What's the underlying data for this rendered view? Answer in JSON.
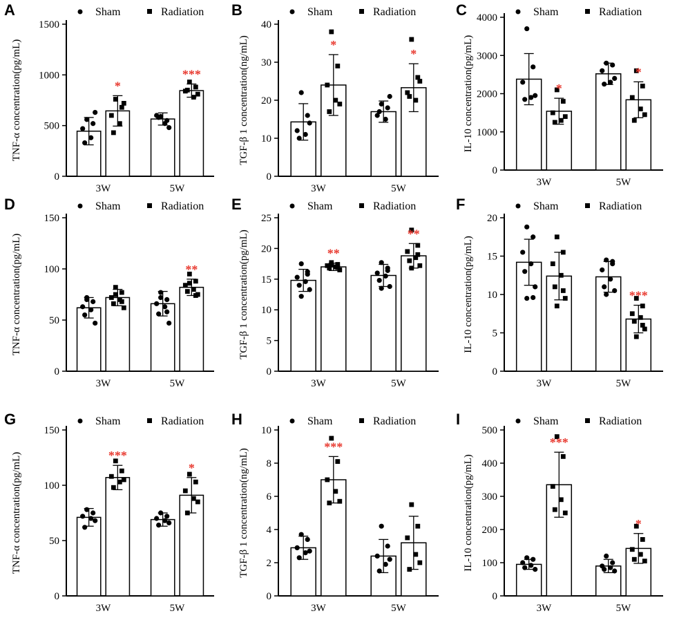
{
  "figure": {
    "legend": {
      "sham_label": "Sham",
      "radiation_label": "Radiation"
    },
    "colors": {
      "axis": "#000000",
      "bar_fill": "#ffffff",
      "point": "#000000",
      "significance": "#e8392f"
    }
  },
  "chart_data": [
    {
      "panel": "A",
      "type": "bar",
      "ylabel": "TNF-α  concentration(pg/mL)",
      "ylim": [
        0,
        1500
      ],
      "yticks": [
        0,
        500,
        1000,
        1500
      ],
      "categories": [
        "3W",
        "5W"
      ],
      "series": [
        {
          "name": "Sham",
          "means": [
            445,
            565
          ],
          "sd": [
            135,
            60
          ],
          "points": [
            [
              560,
              520,
              470,
              380,
              330,
              630
            ],
            [
              590,
              550,
              600,
              520,
              580,
              480
            ]
          ]
        },
        {
          "name": "Radiation",
          "means": [
            645,
            845
          ],
          "sd": [
            150,
            65
          ],
          "points": [
            [
              760,
              680,
              600,
              520,
              430,
              720
            ],
            [
              930,
              880,
              840,
              780,
              850,
              810
            ]
          ]
        }
      ],
      "significance": [
        [
          "",
          ""
        ],
        [
          "*",
          "***"
        ]
      ]
    },
    {
      "panel": "B",
      "type": "bar",
      "ylabel": "TGF-β 1 concentration(ng/mL)",
      "ylim": [
        0,
        40
      ],
      "yticks": [
        0,
        10,
        20,
        30,
        40
      ],
      "categories": [
        "3W",
        "5W"
      ],
      "series": [
        {
          "name": "Sham",
          "means": [
            14.3,
            17.0
          ],
          "sd": [
            4.8,
            2.8
          ],
          "points": [
            [
              22,
              16,
              12,
              11,
              10,
              14
            ],
            [
              19,
              18,
              16,
              15,
              17,
              21
            ]
          ]
        },
        {
          "name": "Radiation",
          "means": [
            24.0,
            23.3
          ],
          "sd": [
            8.0,
            6.3
          ],
          "points": [
            [
              38,
              29,
              24,
              20,
              17,
              19
            ],
            [
              36,
              26,
              22,
              20,
              21,
              25
            ]
          ]
        }
      ],
      "significance": [
        [
          "",
          ""
        ],
        [
          "*",
          "*"
        ]
      ]
    },
    {
      "panel": "C",
      "type": "bar",
      "ylabel": "IL-10  concentration(pg/mL)",
      "ylim": [
        0,
        4000
      ],
      "yticks": [
        0,
        1000,
        2000,
        3000,
        4000
      ],
      "categories": [
        "3W",
        "5W"
      ],
      "series": [
        {
          "name": "Sham",
          "means": [
            2380,
            2520
          ],
          "sd": [
            670,
            280
          ],
          "points": [
            [
              3700,
              2700,
              2300,
              1900,
              1850,
              1950
            ],
            [
              2800,
              2750,
              2600,
              2300,
              2250,
              2400
            ]
          ]
        },
        {
          "name": "Radiation",
          "means": [
            1540,
            1840
          ],
          "sd": [
            340,
            470
          ],
          "points": [
            [
              2100,
              1800,
              1500,
              1300,
              1250,
              1400
            ],
            [
              2600,
              2200,
              1900,
              1600,
              1300,
              1450
            ]
          ]
        }
      ],
      "significance": [
        [
          "",
          ""
        ],
        [
          "*",
          "*"
        ]
      ]
    },
    {
      "panel": "D",
      "type": "bar",
      "ylabel": "TNF-α  concentration(pg/mL)",
      "ylim": [
        0,
        150
      ],
      "yticks": [
        0,
        50,
        100,
        150
      ],
      "categories": [
        "3W",
        "5W"
      ],
      "series": [
        {
          "name": "Sham",
          "means": [
            62,
            66
          ],
          "sd": [
            10,
            12
          ],
          "points": [
            [
              72,
              68,
              63,
              60,
              55,
              47,
              70
            ],
            [
              77,
              70,
              66,
              63,
              56,
              47,
              72,
              58
            ]
          ]
        },
        {
          "name": "Radiation",
          "means": [
            72,
            82
          ],
          "sd": [
            8,
            8
          ],
          "points": [
            [
              82,
              77,
              72,
              70,
              66,
              62,
              75,
              68
            ],
            [
              95,
              88,
              84,
              80,
              78,
              75,
              86,
              74
            ]
          ]
        }
      ],
      "significance": [
        [
          "",
          ""
        ],
        [
          "",
          "**"
        ]
      ]
    },
    {
      "panel": "E",
      "type": "bar",
      "ylabel": "TGF-β 1 concentration(pg/mL)",
      "ylim": [
        0,
        25
      ],
      "yticks": [
        0,
        5,
        10,
        15,
        20,
        25
      ],
      "categories": [
        "3W",
        "5W"
      ],
      "series": [
        {
          "name": "Sham",
          "means": [
            14.8,
            15.6
          ],
          "sd": [
            1.8,
            1.8
          ],
          "points": [
            [
              17.5,
              16.2,
              15.3,
              14.6,
              14.0,
              13.3,
              12.2,
              15.8
            ],
            [
              17.7,
              16.8,
              16.0,
              15.5,
              14.8,
              13.8,
              13.5,
              16.4
            ]
          ]
        },
        {
          "name": "Radiation",
          "means": [
            17.0,
            18.8
          ],
          "sd": [
            0.6,
            2.0
          ],
          "points": [
            [
              17.7,
              17.4,
              17.2,
              17.0,
              16.8,
              16.5,
              17.3,
              16.9
            ],
            [
              23.0,
              20.5,
              19.5,
              18.5,
              18.0,
              17.2,
              16.8,
              19.0
            ]
          ]
        }
      ],
      "significance": [
        [
          "",
          ""
        ],
        [
          "**",
          "**"
        ]
      ]
    },
    {
      "panel": "F",
      "type": "bar",
      "ylabel": "IL-10  concentration(pg/mL)",
      "ylim": [
        0,
        20
      ],
      "yticks": [
        0,
        5,
        10,
        15,
        20
      ],
      "categories": [
        "3W",
        "5W"
      ],
      "series": [
        {
          "name": "Sham",
          "means": [
            14.2,
            12.3
          ],
          "sd": [
            3.0,
            2.0
          ],
          "points": [
            [
              18.8,
              17.5,
              15.5,
              14.0,
              13.0,
              11.0,
              9.5,
              9.6
            ],
            [
              14.5,
              14.0,
              13.2,
              12.0,
              11.0,
              10.5,
              10.0,
              14.3
            ]
          ]
        },
        {
          "name": "Radiation",
          "means": [
            12.4,
            6.8
          ],
          "sd": [
            3.1,
            1.8
          ],
          "points": [
            [
              17.5,
              15.5,
              14.0,
              12.5,
              11.0,
              9.5,
              8.5,
              10.5
            ],
            [
              9.5,
              8.5,
              7.5,
              7.0,
              6.5,
              5.5,
              4.5,
              6.0
            ]
          ]
        }
      ],
      "significance": [
        [
          "",
          ""
        ],
        [
          "",
          "***"
        ]
      ]
    },
    {
      "panel": "G",
      "type": "bar",
      "ylabel": "TNF-α  concentration(pg/mL)",
      "ylim": [
        0,
        150
      ],
      "yticks": [
        0,
        50,
        100,
        150
      ],
      "categories": [
        "3W",
        "5W"
      ],
      "series": [
        {
          "name": "Sham",
          "means": [
            71,
            69
          ],
          "sd": [
            8,
            6
          ],
          "points": [
            [
              78,
              75,
              72,
              70,
              62,
              68
            ],
            [
              75,
              72,
              70,
              68,
              64,
              66
            ]
          ]
        },
        {
          "name": "Radiation",
          "means": [
            107,
            91
          ],
          "sd": [
            11,
            16
          ],
          "points": [
            [
              122,
              113,
              108,
              103,
              98,
              105
            ],
            [
              110,
              103,
              95,
              88,
              75,
              85
            ]
          ]
        }
      ],
      "significance": [
        [
          "",
          ""
        ],
        [
          "***",
          "*"
        ]
      ]
    },
    {
      "panel": "H",
      "type": "bar",
      "ylabel": "TGF-β 1 concentration(ng/mL)",
      "ylim": [
        0,
        10
      ],
      "yticks": [
        0,
        2,
        4,
        6,
        8,
        10
      ],
      "categories": [
        "3W",
        "5W"
      ],
      "series": [
        {
          "name": "Sham",
          "means": [
            2.9,
            2.4
          ],
          "sd": [
            0.7,
            1.0
          ],
          "points": [
            [
              3.7,
              3.4,
              2.9,
              2.6,
              2.3,
              2.7
            ],
            [
              4.2,
              3.0,
              2.4,
              1.9,
              1.5,
              2.2
            ]
          ]
        },
        {
          "name": "Radiation",
          "means": [
            7.0,
            3.2
          ],
          "sd": [
            1.4,
            1.6
          ],
          "points": [
            [
              9.5,
              8.1,
              7.0,
              6.3,
              5.6,
              5.7
            ],
            [
              5.5,
              4.2,
              3.5,
              2.5,
              1.6,
              2.0
            ]
          ]
        }
      ],
      "significance": [
        [
          "",
          ""
        ],
        [
          "***",
          ""
        ]
      ]
    },
    {
      "panel": "I",
      "type": "bar",
      "ylabel": "IL-10  concentration(pg/mL)",
      "ylim": [
        0,
        500
      ],
      "yticks": [
        0,
        100,
        200,
        300,
        400,
        500
      ],
      "categories": [
        "3W",
        "5W"
      ],
      "series": [
        {
          "name": "Sham",
          "means": [
            95,
            90
          ],
          "sd": [
            15,
            20
          ],
          "points": [
            [
              115,
              110,
              100,
              92,
              85,
              80
            ],
            [
              120,
              100,
              90,
              85,
              80,
              75
            ]
          ]
        },
        {
          "name": "Radiation",
          "means": [
            335,
            143
          ],
          "sd": [
            98,
            45
          ],
          "points": [
            [
              480,
              420,
              330,
              290,
              260,
              250
            ],
            [
              210,
              170,
              140,
              125,
              110,
              105
            ]
          ]
        }
      ],
      "significance": [
        [
          "",
          ""
        ],
        [
          "***",
          "*"
        ]
      ]
    }
  ]
}
